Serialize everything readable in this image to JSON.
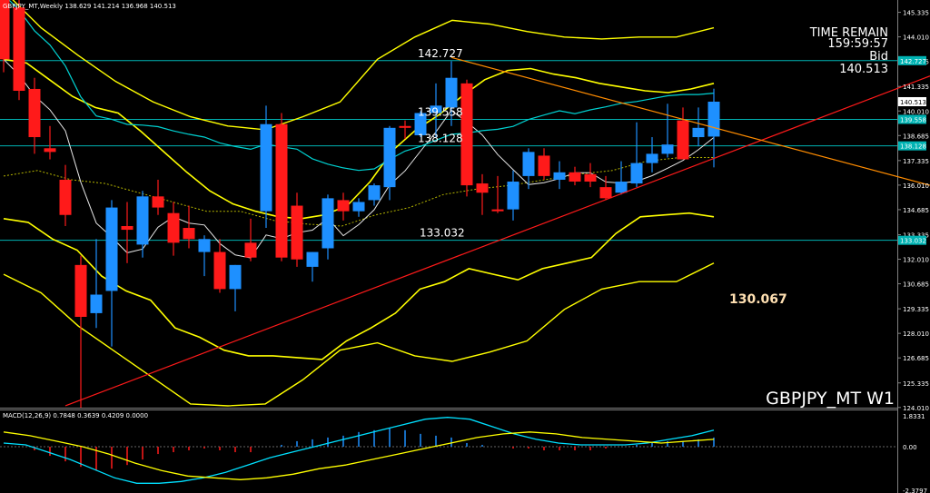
{
  "window": {
    "header": "GBPJPY_MT,Weekly  138.629 141.214 136.968 140.513",
    "symbol_watermark": "GBPJPY_MT  W1",
    "time_remain_label": "TIME REMAIN",
    "time_remain_value": "159:59:57",
    "bid_label": "Bid",
    "bid_value": "140.513",
    "center_label": "130.067"
  },
  "colors": {
    "bull": "#1e90ff",
    "bear": "#ff1a1a",
    "bands": "#ffff00",
    "band_dotted": "#b5b500",
    "cyan_ma": "#00d2d2",
    "white_ma": "#e6e6e6",
    "hline": "#00b3b3",
    "trend_red": "#ff1a1a",
    "trend_orange": "#ff8c00",
    "macd_line": "#00e0ff",
    "signal_line": "#ffff00"
  },
  "chart_data": [
    {
      "type": "candlestick",
      "timeframe": "Weekly",
      "symbol": "GBPJPY_MT",
      "ylim": [
        124.0,
        146.0
      ],
      "ohlc": [
        [
          146.5,
          147.2,
          142.1,
          142.8
        ],
        [
          145.6,
          146.3,
          140.6,
          141.1
        ],
        [
          141.2,
          141.8,
          137.7,
          138.6
        ],
        [
          138.0,
          139.2,
          137.4,
          137.8
        ],
        [
          136.3,
          137.1,
          133.8,
          134.4
        ],
        [
          131.7,
          132.2,
          124.0,
          128.9
        ],
        [
          129.1,
          133.1,
          128.3,
          130.1
        ],
        [
          130.3,
          135.2,
          127.3,
          134.8
        ],
        [
          133.8,
          135.1,
          131.8,
          133.6
        ],
        [
          132.8,
          135.7,
          132.1,
          135.4
        ],
        [
          135.4,
          136.3,
          134.4,
          134.8
        ],
        [
          134.5,
          135.1,
          132.2,
          132.9
        ],
        [
          133.7,
          134.9,
          132.6,
          133.1
        ],
        [
          132.4,
          133.3,
          131.1,
          133.1
        ],
        [
          132.4,
          133.1,
          130.2,
          130.4
        ],
        [
          130.4,
          131.7,
          129.2,
          131.7
        ],
        [
          132.9,
          134.2,
          131.9,
          132.1
        ],
        [
          134.6,
          140.3,
          133.7,
          139.3
        ],
        [
          139.3,
          139.9,
          131.9,
          132.1
        ],
        [
          134.9,
          135.6,
          131.6,
          132.0
        ],
        [
          131.6,
          132.4,
          130.8,
          132.4
        ],
        [
          132.6,
          135.5,
          132.0,
          135.3
        ],
        [
          135.2,
          135.6,
          134.1,
          134.6
        ],
        [
          134.6,
          135.3,
          134.3,
          135.1
        ],
        [
          135.2,
          136.1,
          134.9,
          136.0
        ],
        [
          135.9,
          139.2,
          135.2,
          139.1
        ],
        [
          139.2,
          139.5,
          138.5,
          139.1
        ],
        [
          138.7,
          140.0,
          138.6,
          139.9
        ],
        [
          139.9,
          141.5,
          138.6,
          140.3
        ],
        [
          140.2,
          142.7,
          139.2,
          141.8
        ],
        [
          141.5,
          141.7,
          135.4,
          136.0
        ],
        [
          136.1,
          136.6,
          134.4,
          135.6
        ],
        [
          134.7,
          136.5,
          134.5,
          134.6
        ],
        [
          134.7,
          136.8,
          134.1,
          136.2
        ],
        [
          136.5,
          138.0,
          135.8,
          137.8
        ],
        [
          137.6,
          138.0,
          136.3,
          136.5
        ],
        [
          136.3,
          137.3,
          135.8,
          136.7
        ],
        [
          136.7,
          137.0,
          136.0,
          136.2
        ],
        [
          136.6,
          137.2,
          135.9,
          136.2
        ],
        [
          135.9,
          136.5,
          135.2,
          135.3
        ],
        [
          135.6,
          137.3,
          135.5,
          136.2
        ],
        [
          136.1,
          139.4,
          135.9,
          137.2
        ],
        [
          137.2,
          138.6,
          136.7,
          137.7
        ],
        [
          137.7,
          140.4,
          137.5,
          138.2
        ],
        [
          139.5,
          140.2,
          137.6,
          137.4
        ],
        [
          138.6,
          140.2,
          138.1,
          139.1
        ],
        [
          138.629,
          141.214,
          136.968,
          140.513
        ]
      ],
      "levels": [
        142.727,
        139.558,
        138.128,
        133.032
      ],
      "level_labels": [
        "142.727",
        "139.558",
        "138.128",
        "133.032"
      ],
      "y_ticks": [
        "145.335",
        "144.010",
        "142.685",
        "141.335",
        "140.010",
        "138.685",
        "137.335",
        "136.010",
        "134.685",
        "133.335",
        "132.010",
        "130.685",
        "129.335",
        "128.010",
        "126.685",
        "125.335",
        "124.010"
      ],
      "y_tick_values": [
        145.335,
        144.01,
        142.685,
        141.335,
        140.01,
        138.685,
        137.335,
        136.01,
        134.685,
        133.335,
        132.01,
        130.685,
        129.335,
        128.01,
        126.685,
        125.335,
        124.01
      ],
      "price_tags": [
        "142.727",
        "140.513",
        "139.558",
        "138.128",
        "133.032"
      ],
      "price_tag_values": [
        142.727,
        140.513,
        139.558,
        138.128,
        133.032
      ],
      "trendlines": [
        {
          "name": "support",
          "from": [
            4,
            124.1
          ],
          "to": [
            60,
            141.9
          ]
        },
        {
          "name": "resistance",
          "from": [
            29,
            142.9
          ],
          "to": [
            60,
            136.0
          ]
        }
      ],
      "bands": {
        "inner_upper": [
          142.8,
          142.6,
          141.7,
          140.8,
          140.2,
          139.9,
          138.9,
          137.8,
          136.7,
          135.7,
          135.0,
          134.6,
          134.3,
          134.2,
          134.4,
          134.9,
          136.2,
          137.9,
          139.0,
          139.8,
          140.8,
          141.7,
          142.2,
          142.3,
          142.0,
          141.8,
          141.5,
          141.3,
          141.1,
          141.0,
          141.2,
          141.5
        ],
        "inner_lower": [
          134.2,
          134.0,
          133.1,
          132.5,
          131.1,
          130.3,
          129.8,
          128.3,
          127.8,
          127.1,
          126.8,
          126.8,
          126.7,
          126.6,
          127.6,
          128.3,
          129.1,
          130.4,
          130.8,
          131.5,
          131.2,
          130.9,
          131.5,
          131.8,
          132.1,
          133.4,
          134.3,
          134.4,
          134.5,
          134.3
        ],
        "outer_upper": [
          146.5,
          144.5,
          143.0,
          141.6,
          140.5,
          139.7,
          139.2,
          139.0,
          139.7,
          140.5,
          142.8,
          144.0,
          144.9,
          144.7,
          144.3,
          144.0,
          143.9,
          144.0,
          144.0,
          144.5
        ],
        "outer_lower": [
          131.2,
          130.2,
          128.4,
          127.0,
          125.6,
          124.2,
          124.1,
          124.2,
          125.5,
          127.1,
          127.5,
          126.8,
          126.5,
          127.0,
          127.6,
          129.3,
          130.4,
          130.8,
          130.8,
          131.8
        ],
        "mid": [
          136.5,
          136.8,
          136.3,
          136.1,
          135.6,
          135.1,
          134.6,
          134.6,
          134.1,
          133.9,
          133.8,
          134.4,
          134.8,
          135.5,
          135.8,
          136.0,
          136.3,
          136.6,
          136.8,
          137.3,
          137.5,
          137.5
        ]
      }
    },
    {
      "type": "macd",
      "title": "MACD(12,26,9) 0.7848 0.3639 0.4209 0.0000",
      "ylim": [
        -2.3797,
        1.8331
      ],
      "y_ticks": [
        "1.8331",
        "0.00",
        "-2.3797"
      ],
      "y_tick_values": [
        1.8331,
        0.0,
        -2.3797
      ],
      "histogram": [
        0.0,
        0.0,
        -0.2,
        -0.5,
        -0.8,
        -1.1,
        -1.3,
        -1.2,
        -1.0,
        -0.7,
        -0.4,
        -0.3,
        -0.2,
        -0.1,
        -0.2,
        -0.3,
        -0.3,
        0.0,
        0.1,
        0.3,
        0.4,
        0.5,
        0.6,
        0.8,
        0.9,
        1.0,
        0.9,
        0.7,
        0.6,
        0.5,
        0.2,
        0.1,
        0.0,
        -0.1,
        -0.1,
        -0.2,
        -0.2,
        -0.2,
        -0.2,
        -0.1,
        0.0,
        0.1,
        0.2,
        0.3,
        0.3,
        0.4,
        0.5
      ],
      "macd": [
        0.2,
        0.1,
        -0.3,
        -0.7,
        -1.2,
        -1.7,
        -2.0,
        -2.0,
        -1.9,
        -1.7,
        -1.4,
        -1.0,
        -0.6,
        -0.3,
        0.0,
        0.3,
        0.6,
        0.9,
        1.2,
        1.5,
        1.6,
        1.5,
        1.1,
        0.7,
        0.4,
        0.2,
        0.1,
        0.1,
        0.1,
        0.2,
        0.4,
        0.6,
        0.9
      ],
      "signal": [
        0.8,
        0.6,
        0.3,
        0.0,
        -0.4,
        -0.9,
        -1.3,
        -1.6,
        -1.7,
        -1.8,
        -1.7,
        -1.5,
        -1.2,
        -1.0,
        -0.7,
        -0.4,
        -0.1,
        0.2,
        0.5,
        0.7,
        0.8,
        0.7,
        0.5,
        0.4,
        0.3,
        0.2,
        0.3,
        0.4
      ]
    }
  ]
}
